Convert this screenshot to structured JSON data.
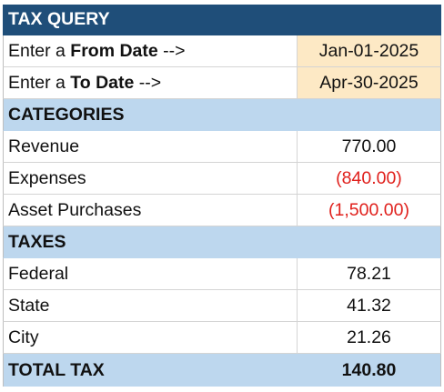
{
  "title": "TAX QUERY",
  "dates": {
    "from_prefix": "Enter a ",
    "from_bold": "From Date",
    "from_suffix": " -->",
    "from_value": "Jan-01-2025",
    "to_prefix": "Enter a ",
    "to_bold": "To Date",
    "to_suffix": " -->",
    "to_value": "Apr-30-2025"
  },
  "categories": {
    "header": "CATEGORIES",
    "rows": [
      {
        "label": "Revenue",
        "value": "770.00"
      },
      {
        "label": "Expenses",
        "value": "(840.00)"
      },
      {
        "label": "Asset Purchases",
        "value": "(1,500.00)"
      }
    ]
  },
  "taxes": {
    "header": "TAXES",
    "rows": [
      {
        "label": "Federal",
        "value": "78.21"
      },
      {
        "label": "State",
        "value": "41.32"
      },
      {
        "label": "City",
        "value": "21.26"
      }
    ]
  },
  "total": {
    "label": "TOTAL TAX",
    "value": "140.80"
  },
  "colors": {
    "title_bg": "#1f4e79",
    "section_bg": "#bdd7ee",
    "input_bg": "#fde9c5",
    "negative": "#e0201c"
  }
}
